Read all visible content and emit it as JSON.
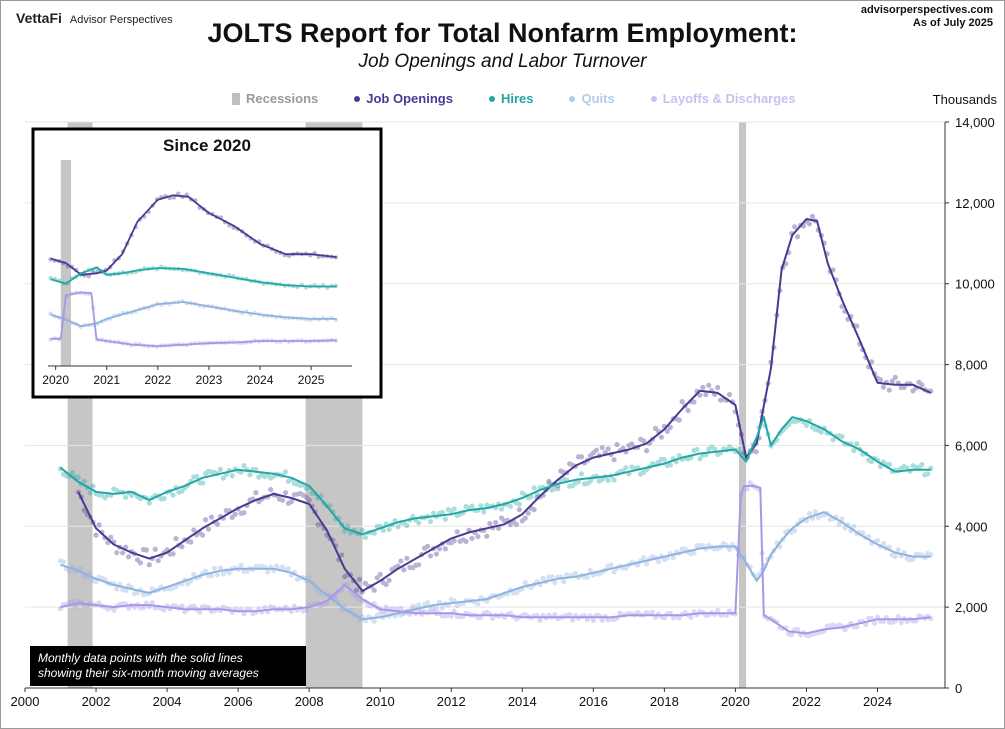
{
  "header": {
    "brand_main": "VettaFi",
    "brand_sub": "Advisor Perspectives",
    "site": "advisorperspectives.com",
    "as_of": "As of July 2025",
    "title": "JOLTS Report for Total Nonfarm Employment:",
    "subtitle": "Job Openings and Labor Turnover",
    "units": "Thousands"
  },
  "note": {
    "line1": "Monthly data points with the solid lines",
    "line2": "showing their six-month moving averages"
  },
  "colors": {
    "recession": "#c6c6c6",
    "openings": "#4a3a91",
    "hires": "#22a7a4",
    "quits": "#8fb2df",
    "layoffs": "#a897e8"
  },
  "chart_data": [
    {
      "type": "line",
      "title": "",
      "ylabel": "Thousands",
      "xlim": [
        2000,
        2025.9
      ],
      "ylim": [
        0,
        14000
      ],
      "x_ticks": [
        "2000",
        "2002",
        "2004",
        "2006",
        "2008",
        "2010",
        "2012",
        "2014",
        "2016",
        "2018",
        "2020",
        "2022",
        "2024"
      ],
      "y_ticks": [
        "0",
        "2,000",
        "4,000",
        "6,000",
        "8,000",
        "10,000",
        "12,000",
        "14,000"
      ],
      "recessions": [
        [
          2001.2,
          2001.9
        ],
        [
          2007.9,
          2009.5
        ],
        [
          2020.1,
          2020.3
        ]
      ],
      "legend": [
        {
          "label": "Recessions",
          "kind": "rect",
          "color": "#bfbfbf"
        },
        {
          "label": "Job Openings",
          "kind": "dot",
          "color": "#4a3a91"
        },
        {
          "label": "Hires",
          "kind": "dot",
          "color": "#22a7a4"
        },
        {
          "label": "Quits",
          "kind": "dot",
          "color": "#b3cbe9"
        },
        {
          "label": "Layoffs & Discharges",
          "kind": "dot",
          "color": "#cbbff2"
        }
      ],
      "series": [
        {
          "name": "Job Openings",
          "color": "#4a3a91",
          "x": [
            2001.5,
            2002,
            2002.5,
            2003,
            2003.5,
            2004,
            2004.5,
            2005,
            2005.5,
            2006,
            2006.5,
            2007,
            2007.5,
            2008,
            2008.5,
            2009,
            2009.5,
            2010,
            2010.5,
            2011,
            2011.5,
            2012,
            2012.5,
            2013,
            2013.5,
            2014,
            2014.5,
            2015,
            2015.5,
            2016,
            2016.5,
            2017,
            2017.5,
            2018,
            2018.5,
            2019,
            2019.5,
            2020,
            2020.3,
            2020.6,
            2021,
            2021.3,
            2021.6,
            2022,
            2022.3,
            2022.6,
            2023,
            2023.5,
            2024,
            2024.5,
            2025,
            2025.5
          ],
          "y": [
            4850,
            3950,
            3550,
            3350,
            3200,
            3350,
            3650,
            3950,
            4200,
            4450,
            4650,
            4800,
            4700,
            4550,
            3900,
            2950,
            2400,
            2650,
            2950,
            3200,
            3450,
            3700,
            3850,
            3950,
            4050,
            4300,
            4750,
            5150,
            5500,
            5700,
            5800,
            5900,
            6050,
            6400,
            6900,
            7350,
            7300,
            7000,
            5700,
            6050,
            7900,
            10350,
            11200,
            11600,
            11550,
            10500,
            9600,
            8600,
            7550,
            7500,
            7500,
            7300
          ]
        },
        {
          "name": "Hires",
          "color": "#22a7a4",
          "x": [
            2001,
            2001.5,
            2002,
            2002.5,
            2003,
            2003.5,
            2004,
            2004.5,
            2005,
            2005.5,
            2006,
            2006.5,
            2007,
            2007.5,
            2008,
            2008.5,
            2009,
            2009.5,
            2010,
            2010.5,
            2011,
            2011.5,
            2012,
            2012.5,
            2013,
            2013.5,
            2014,
            2014.5,
            2015,
            2015.5,
            2016,
            2016.5,
            2017,
            2017.5,
            2018,
            2018.5,
            2019,
            2019.5,
            2020,
            2020.3,
            2020.6,
            2020.8,
            2021,
            2021.3,
            2021.6,
            2022,
            2022.5,
            2023,
            2023.5,
            2024,
            2024.5,
            2025,
            2025.5
          ],
          "y": [
            5450,
            5100,
            4850,
            4800,
            4850,
            4650,
            4850,
            5000,
            5200,
            5300,
            5400,
            5350,
            5300,
            5200,
            5000,
            4500,
            3950,
            3800,
            3950,
            4100,
            4200,
            4250,
            4300,
            4400,
            4450,
            4550,
            4700,
            4900,
            5050,
            5150,
            5200,
            5250,
            5350,
            5450,
            5550,
            5700,
            5800,
            5850,
            5900,
            5600,
            6200,
            6700,
            6000,
            6400,
            6700,
            6600,
            6400,
            6100,
            5900,
            5600,
            5350,
            5400,
            5400
          ]
        },
        {
          "name": "Quits",
          "color": "#8fb2df",
          "x": [
            2001,
            2001.5,
            2002,
            2002.5,
            2003,
            2003.5,
            2004,
            2004.5,
            2005,
            2005.5,
            2006,
            2006.5,
            2007,
            2007.5,
            2008,
            2008.5,
            2009,
            2009.5,
            2010,
            2010.5,
            2011,
            2011.5,
            2012,
            2012.5,
            2013,
            2013.5,
            2014,
            2014.5,
            2015,
            2015.5,
            2016,
            2016.5,
            2017,
            2017.5,
            2018,
            2018.5,
            2019,
            2019.5,
            2020,
            2020.3,
            2020.6,
            2020.8,
            2021,
            2021.3,
            2021.6,
            2022,
            2022.5,
            2023,
            2023.5,
            2024,
            2024.5,
            2025,
            2025.5
          ],
          "y": [
            3050,
            2900,
            2700,
            2550,
            2450,
            2350,
            2500,
            2650,
            2800,
            2900,
            2950,
            2950,
            2950,
            2850,
            2650,
            2300,
            1950,
            1700,
            1750,
            1850,
            1950,
            2050,
            2100,
            2150,
            2200,
            2350,
            2500,
            2600,
            2700,
            2750,
            2850,
            2950,
            3050,
            3150,
            3250,
            3350,
            3450,
            3500,
            3500,
            3100,
            2650,
            2900,
            3300,
            3650,
            3950,
            4200,
            4350,
            4100,
            3800,
            3550,
            3350,
            3250,
            3250
          ]
        },
        {
          "name": "Layoffs & Discharges",
          "color": "#a897e8",
          "x": [
            2001,
            2001.5,
            2002,
            2002.5,
            2003,
            2003.5,
            2004,
            2004.5,
            2005,
            2005.5,
            2006,
            2006.5,
            2007,
            2007.5,
            2008,
            2008.5,
            2009,
            2009.5,
            2010,
            2010.5,
            2011,
            2011.5,
            2012,
            2012.5,
            2013,
            2013.5,
            2014,
            2014.5,
            2015,
            2015.5,
            2016,
            2016.5,
            2017,
            2017.5,
            2018,
            2018.5,
            2019,
            2019.5,
            2020,
            2020.15,
            2020.25,
            2020.5,
            2020.7,
            2020.8,
            2021,
            2021.5,
            2022,
            2022.5,
            2023,
            2023.5,
            2024,
            2024.5,
            2025,
            2025.5
          ],
          "y": [
            2000,
            2100,
            2050,
            2000,
            2050,
            2050,
            2000,
            1950,
            1950,
            1950,
            1900,
            1900,
            1950,
            1950,
            2000,
            2150,
            2550,
            2200,
            1950,
            1900,
            1850,
            1850,
            1850,
            1800,
            1800,
            1800,
            1750,
            1750,
            1750,
            1750,
            1750,
            1750,
            1800,
            1800,
            1800,
            1800,
            1850,
            1850,
            1850,
            4800,
            5000,
            5000,
            4950,
            1800,
            1700,
            1400,
            1350,
            1450,
            1500,
            1600,
            1700,
            1700,
            1700,
            1750
          ]
        }
      ]
    },
    {
      "type": "line",
      "title": "Since 2020",
      "xlim": [
        2019.85,
        2025.8
      ],
      "ylim": [
        0,
        14000
      ],
      "x_ticks": [
        "2020",
        "2021",
        "2022",
        "2023",
        "2024",
        "2025"
      ],
      "recessions": [
        [
          2020.1,
          2020.3
        ]
      ],
      "series": [
        {
          "name": "Job Openings",
          "color": "#4a3a91",
          "x": [
            2019.9,
            2020.2,
            2020.5,
            2020.8,
            2021,
            2021.3,
            2021.6,
            2022,
            2022.3,
            2022.6,
            2023,
            2023.5,
            2024,
            2024.5,
            2025,
            2025.5
          ],
          "y": [
            7300,
            7000,
            6200,
            6300,
            6500,
            7600,
            9800,
            11300,
            11600,
            11500,
            10400,
            9500,
            8300,
            7600,
            7600,
            7400
          ]
        },
        {
          "name": "Hires",
          "color": "#22a7a4",
          "x": [
            2019.9,
            2020.2,
            2020.5,
            2020.8,
            2021,
            2021.3,
            2021.6,
            2022,
            2022.5,
            2023,
            2023.5,
            2024,
            2024.5,
            2025,
            2025.5
          ],
          "y": [
            5900,
            5600,
            6300,
            6700,
            6200,
            6300,
            6500,
            6650,
            6600,
            6300,
            6000,
            5700,
            5500,
            5400,
            5400
          ]
        },
        {
          "name": "Quits",
          "color": "#8fb2df",
          "x": [
            2019.9,
            2020.2,
            2020.5,
            2020.8,
            2021,
            2021.3,
            2021.6,
            2022,
            2022.5,
            2023,
            2023.5,
            2024,
            2024.5,
            2025,
            2025.5
          ],
          "y": [
            3500,
            3150,
            2700,
            2900,
            3200,
            3500,
            3800,
            4200,
            4350,
            4050,
            3750,
            3500,
            3300,
            3200,
            3200
          ]
        },
        {
          "name": "Layoffs & Discharges",
          "color": "#a897e8",
          "x": [
            2019.9,
            2020.1,
            2020.2,
            2020.5,
            2020.7,
            2020.8,
            2021,
            2021.5,
            2022,
            2022.5,
            2023,
            2023.5,
            2024,
            2024.5,
            2025,
            2025.5
          ],
          "y": [
            1850,
            1850,
            4800,
            5000,
            4950,
            1800,
            1700,
            1450,
            1350,
            1450,
            1550,
            1600,
            1700,
            1700,
            1700,
            1750
          ]
        }
      ]
    }
  ]
}
